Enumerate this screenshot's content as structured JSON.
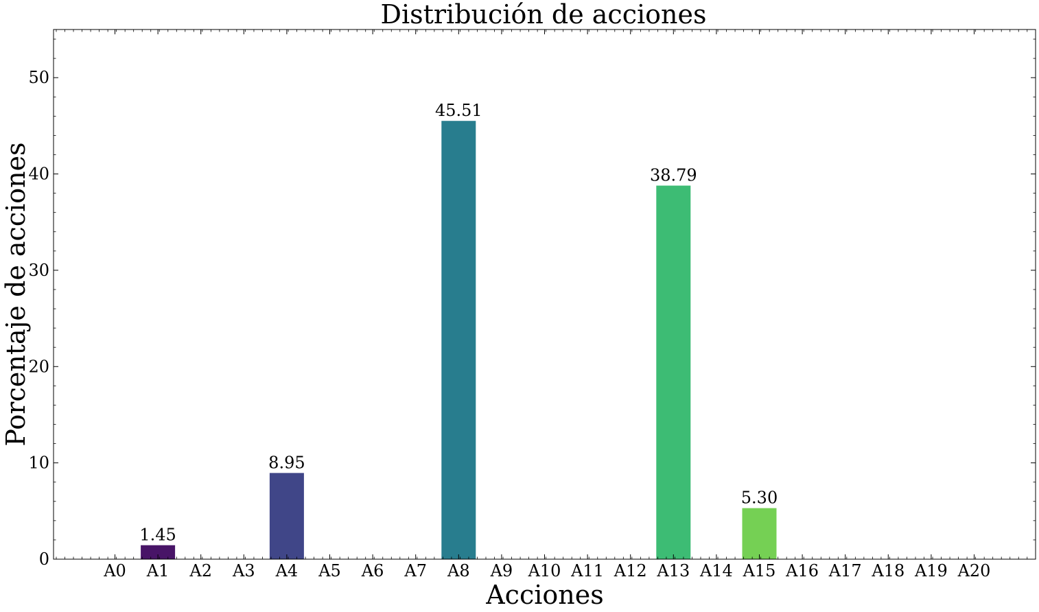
{
  "chart_data": {
    "type": "bar",
    "title": "Distribución de acciones",
    "xlabel": "Acciones",
    "ylabel": "Porcentaje de acciones",
    "categories": [
      "A0",
      "A1",
      "A2",
      "A3",
      "A4",
      "A5",
      "A6",
      "A7",
      "A8",
      "A9",
      "A10",
      "A11",
      "A12",
      "A13",
      "A14",
      "A15",
      "A16",
      "A17",
      "A18",
      "A19",
      "A20"
    ],
    "values": [
      0,
      1.45,
      0,
      0,
      8.95,
      0,
      0,
      0,
      45.51,
      0,
      0,
      0,
      0,
      38.79,
      0,
      5.3,
      0,
      0,
      0,
      0,
      0
    ],
    "data_labels": [
      "",
      "1.45",
      "",
      "",
      "8.95",
      "",
      "",
      "",
      "45.51",
      "",
      "",
      "",
      "",
      "38.79",
      "",
      "5.30",
      "",
      "",
      "",
      "",
      ""
    ],
    "bar_colors": [
      "#440154",
      "#481467",
      "#482576",
      "#453781",
      "#404688",
      "#39558c",
      "#33638d",
      "#2d718e",
      "#287d8e",
      "#238a8d",
      "#1f968b",
      "#20a386",
      "#29af7f",
      "#3dbc74",
      "#56c667",
      "#75d054",
      "#95d840",
      "#bade28",
      "#dde318",
      "#fde725",
      "#fde725"
    ],
    "yticks": [
      0,
      10,
      20,
      30,
      40,
      50
    ],
    "ylim": [
      0,
      55
    ],
    "grid": false,
    "legend": "none"
  }
}
